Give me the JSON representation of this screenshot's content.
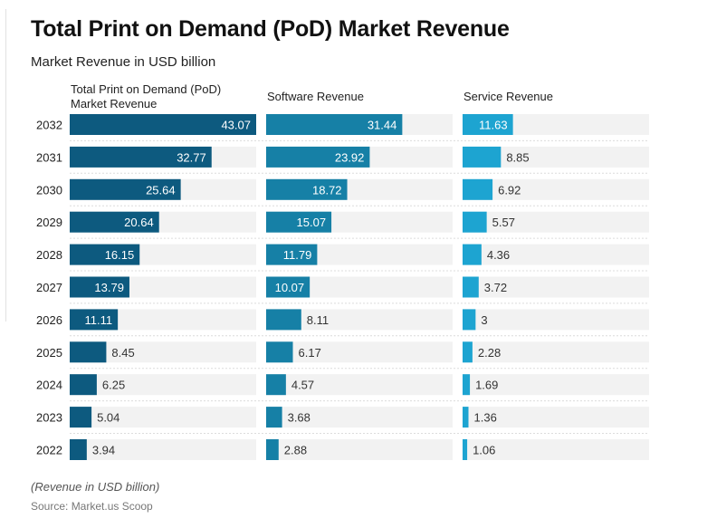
{
  "title": "Total Print on Demand (PoD) Market Revenue",
  "subtitle": "Market Revenue in USD billion",
  "note": "(Revenue in USD billion)",
  "source": "Source: Market.us Scoop",
  "colors": {
    "series": [
      "#0d5a7f",
      "#1680a6",
      "#1da4d1"
    ],
    "track": "#f2f2f2",
    "divider": "#dcdcdc",
    "label_on_bar": "#ffffff",
    "label_off_bar": "#333333"
  },
  "chart_data": {
    "type": "bar",
    "orientation": "horizontal",
    "categories": [
      "2032",
      "2031",
      "2030",
      "2029",
      "2028",
      "2027",
      "2026",
      "2025",
      "2024",
      "2023",
      "2022"
    ],
    "series": [
      {
        "name": "Total Print on Demand (PoD) Market Revenue",
        "header_lines": [
          "Total Print on Demand (PoD)",
          "Market Revenue"
        ],
        "values": [
          43.07,
          32.77,
          25.64,
          20.64,
          16.15,
          13.79,
          11.11,
          8.45,
          6.25,
          5.04,
          3.94
        ]
      },
      {
        "name": "Software Revenue",
        "header_lines": [
          "Software Revenue"
        ],
        "values": [
          31.44,
          23.92,
          18.72,
          15.07,
          11.79,
          10.07,
          8.11,
          6.17,
          4.57,
          3.68,
          2.88
        ]
      },
      {
        "name": "Service Revenue",
        "header_lines": [
          "Service Revenue"
        ],
        "values": [
          11.63,
          8.85,
          6.92,
          5.57,
          4.36,
          3.72,
          3,
          2.28,
          1.69,
          1.36,
          1.06
        ]
      }
    ],
    "xlim": [
      0,
      43.07
    ],
    "unit": "USD billion",
    "legend": "none",
    "grid": false
  }
}
